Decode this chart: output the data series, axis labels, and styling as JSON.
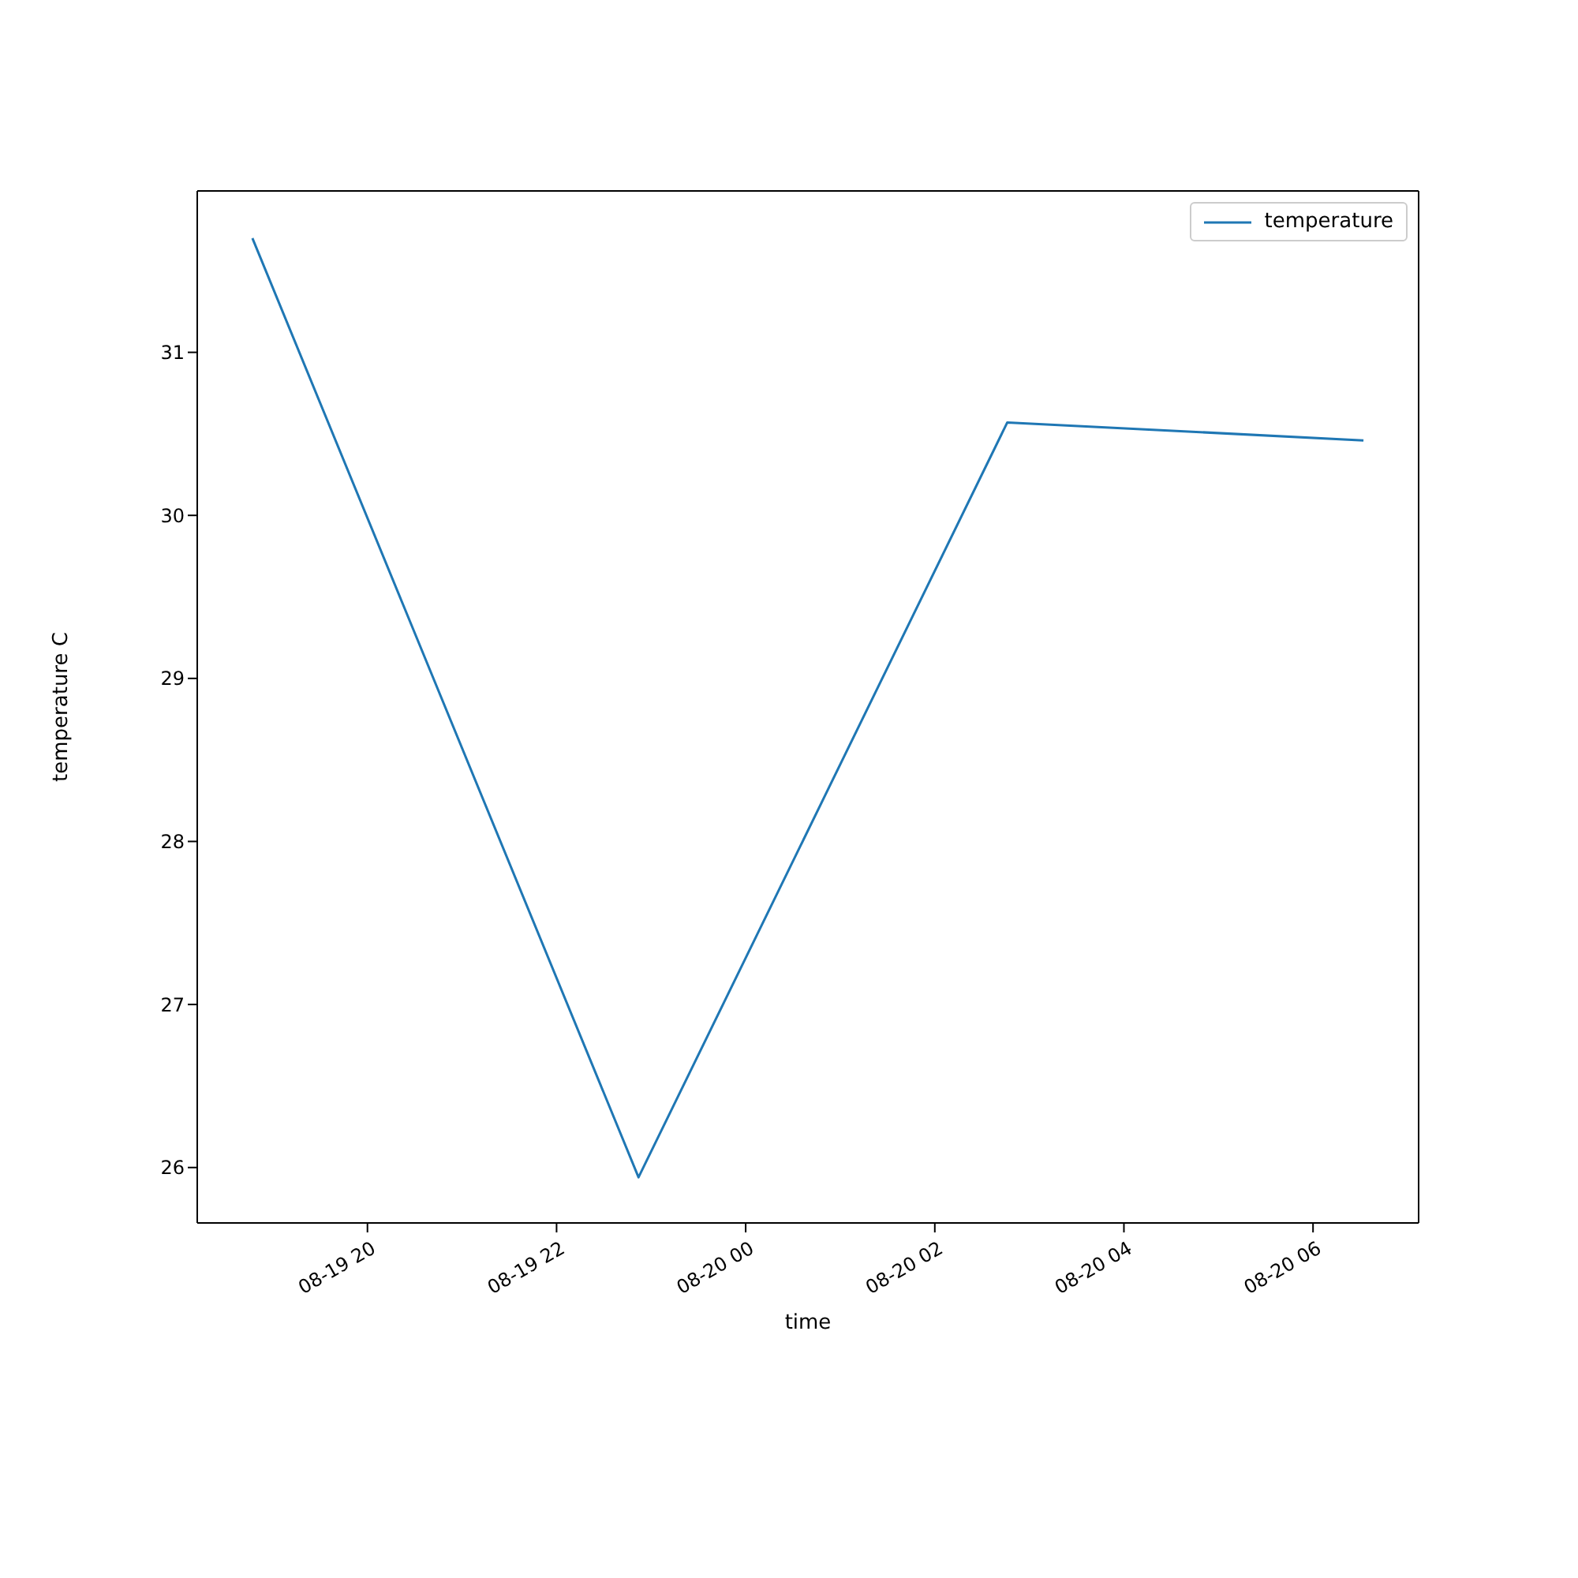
{
  "chart_data": {
    "type": "line",
    "xlabel": "time",
    "ylabel": "temperature C",
    "x": [
      "--08-19T18:47",
      "--08-19T22:52",
      "--08-20T02:46",
      "--08-20T06:32"
    ],
    "series": [
      {
        "name": "temperature",
        "color": "#1f77b4",
        "values": [
          31.7,
          25.94,
          30.57,
          30.46
        ]
      }
    ],
    "xlim": [
      "--08-19T18:12",
      "--08-20T07:07"
    ],
    "xticks": [
      {
        "value": "--08-19T20:00",
        "label": "08-19 20"
      },
      {
        "value": "--08-19T22:00",
        "label": "08-19 22"
      },
      {
        "value": "--08-20T00:00",
        "label": "08-20 00"
      },
      {
        "value": "--08-20T02:00",
        "label": "08-20 02"
      },
      {
        "value": "--08-20T04:00",
        "label": "08-20 04"
      },
      {
        "value": "--08-20T06:00",
        "label": "08-20 06"
      }
    ],
    "ylim": [
      25.66,
      31.99
    ],
    "yticks": [
      26,
      27,
      28,
      29,
      30,
      31
    ],
    "legend": "top right",
    "marker": "none",
    "line_style": "solid"
  }
}
